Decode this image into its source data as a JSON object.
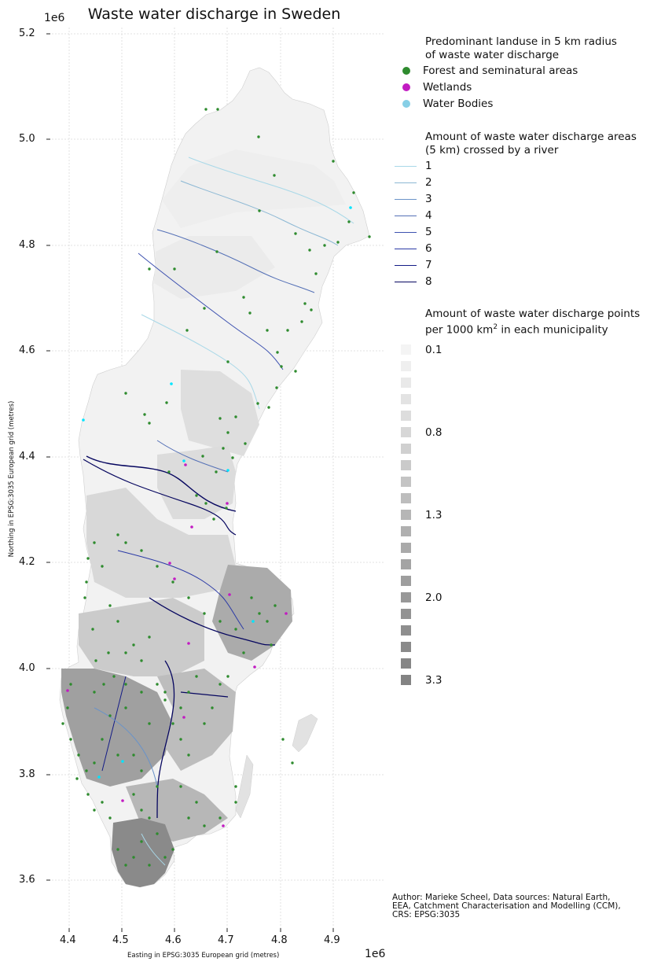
{
  "title": "Waste water discharge in Sweden",
  "axes": {
    "x_label": "Easting in EPSG:3035 European grid (metres)",
    "y_label": "Northing in EPSG:3035 European grid (metres)",
    "x_exponent": "1e6",
    "y_exponent": "1e6",
    "x_ticks": [
      "4.4",
      "4.5",
      "4.6",
      "4.7",
      "4.8",
      "4.9"
    ],
    "y_ticks": [
      "5.2",
      "5.0",
      "4.8",
      "4.6",
      "4.4",
      "4.2",
      "4.0",
      "3.8",
      "3.6"
    ]
  },
  "legend_landuse": {
    "title_line1": "Predominant landuse in 5 km radius",
    "title_line2": "of waste water discharge",
    "items": [
      {
        "label": "Forest and seminatural areas",
        "color": "#2e8b2e"
      },
      {
        "label": "Wetlands",
        "color": "#c21bc2"
      },
      {
        "label": "Water Bodies",
        "color": "#87cfe6"
      }
    ]
  },
  "legend_rivers": {
    "title_line1": "Amount of waste water discharge areas",
    "title_line2": "(5 km) crossed by a river",
    "items": [
      {
        "label": "1",
        "color": "#a8d8e8"
      },
      {
        "label": "2",
        "color": "#8cb8d4"
      },
      {
        "label": "3",
        "color": "#6a93c8"
      },
      {
        "label": "4",
        "color": "#5470b6"
      },
      {
        "label": "5",
        "color": "#3e52b0"
      },
      {
        "label": "6",
        "color": "#2b3aa6"
      },
      {
        "label": "7",
        "color": "#141c86"
      },
      {
        "label": "8",
        "color": "#06065f"
      }
    ]
  },
  "legend_density": {
    "title_line1": "Amount of waste water discharge points",
    "title_line2_pre": "per 1000 km",
    "title_line2_sup": "2",
    "title_line2_post": " in each municipality",
    "swatch_colors": [
      "#f4f4f4",
      "#efefef",
      "#e9e9e9",
      "#e3e3e3",
      "#dddddd",
      "#d7d7d7",
      "#d0d0d0",
      "#cacaca",
      "#c4c4c4",
      "#bdbdbd",
      "#b6b6b6",
      "#b0b0b0",
      "#aaaaaa",
      "#a4a4a4",
      "#9e9e9e",
      "#989898",
      "#939393",
      "#8e8e8e",
      "#8a8a8a",
      "#868686",
      "#838383"
    ],
    "labels": [
      {
        "text": "0.1",
        "index": 0
      },
      {
        "text": "0.8",
        "index": 5
      },
      {
        "text": "1.3",
        "index": 10
      },
      {
        "text": "2.0",
        "index": 15
      },
      {
        "text": "3.3",
        "index": 20
      }
    ]
  },
  "credit": {
    "line1": "Author: Marieke Scheel, Data sources: Natural Earth,",
    "line2": "EEA, Catchment Characterisation and Modelling (CCM),",
    "line3": "CRS: EPSG:3035"
  }
}
